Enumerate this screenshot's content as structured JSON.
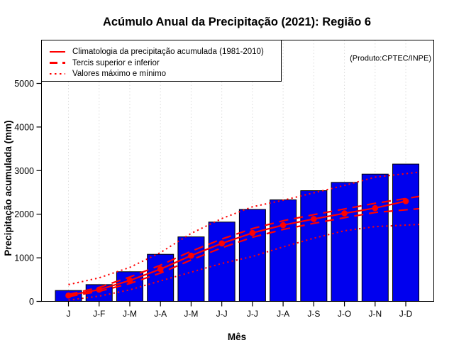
{
  "title": "Acúmulo Anual da Precipitação (2021): Região 6",
  "watermark": "(Produto:CPTEC/INPE)",
  "legend": {
    "position": "top-left",
    "items": [
      {
        "style": "solid",
        "label": "Climatologia da precipitação acumulada (1981-2010)"
      },
      {
        "style": "dashed",
        "label": "Tercis superior e inferior"
      },
      {
        "style": "dotted",
        "label": "Valores máximo e mínimo"
      }
    ]
  },
  "colors": {
    "bar_fill": "#0000EE",
    "bar_border": "#000000",
    "line_red": "#FF0000",
    "grid": "#DCDCDC",
    "axis": "#000000",
    "watermark_text": "#7D7D7D"
  },
  "chart_data": {
    "type": "bar",
    "title": "Acúmulo Anual da Precipitação (2021): Região 6",
    "xlabel": "Mês",
    "ylabel": "Precipitação acumulada (mm)",
    "ylim": [
      0,
      5000
    ],
    "yticks": [
      0,
      1000,
      2000,
      3000,
      4000,
      5000
    ],
    "grid": "vertical-dotted",
    "legend_position": "top-left",
    "categories": [
      "J",
      "J-F",
      "J-M",
      "J-A",
      "J-M",
      "J-J",
      "J-J",
      "J-A",
      "J-S",
      "J-O",
      "J-N",
      "J-D"
    ],
    "bars": {
      "values": [
        250,
        385,
        680,
        1080,
        1480,
        1820,
        2110,
        2330,
        2540,
        2730,
        2920,
        3150
      ]
    },
    "line_series": [
      {
        "key": "climatologia",
        "legend_label": "Climatologia da precipitação acumulada (1981-2010)",
        "style": "solid",
        "markers": true,
        "values": [
          135,
          270,
          480,
          740,
          1050,
          1330,
          1570,
          1750,
          1890,
          2020,
          2140,
          2300
        ]
      },
      {
        "key": "tercil-superior",
        "legend_label": "Tercis superior e inferior",
        "style": "dashed",
        "markers": false,
        "values": [
          160,
          320,
          560,
          830,
          1150,
          1430,
          1670,
          1850,
          1990,
          2120,
          2250,
          2360
        ]
      },
      {
        "key": "tercil-inferior",
        "legend_label": "Tercis superior e inferior",
        "style": "dashed",
        "markers": false,
        "values": [
          110,
          230,
          410,
          650,
          950,
          1230,
          1470,
          1650,
          1790,
          1920,
          2040,
          2100
        ]
      },
      {
        "key": "maximo",
        "legend_label": "Valores máximo e mínimo",
        "style": "dotted",
        "markers": false,
        "values": [
          385,
          540,
          780,
          1120,
          1560,
          1900,
          2170,
          2320,
          2490,
          2660,
          2850,
          2930
        ]
      },
      {
        "key": "minimo",
        "legend_label": "Valores máximo e mínimo",
        "style": "dotted",
        "markers": false,
        "values": [
          30,
          120,
          265,
          470,
          670,
          870,
          1030,
          1250,
          1450,
          1620,
          1715,
          1750
        ]
      }
    ]
  }
}
